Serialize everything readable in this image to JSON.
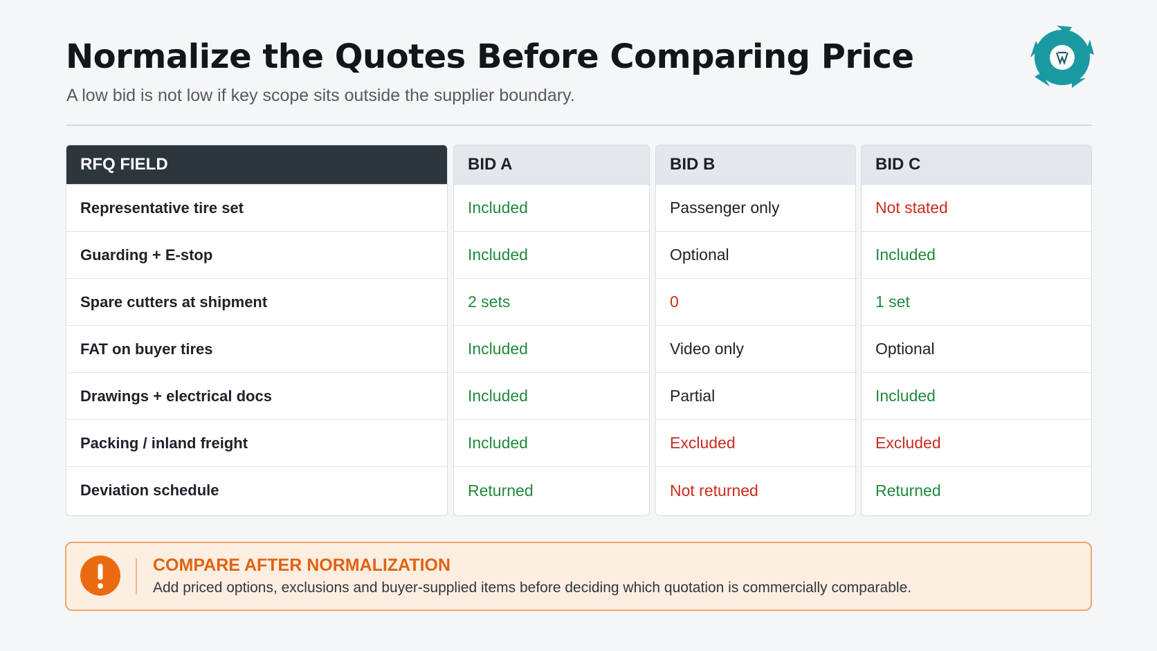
{
  "header": {
    "title": "Normalize the Quotes Before Comparing Price",
    "subtitle": "A low bid is not low if key scope sits outside the supplier boundary."
  },
  "table": {
    "columns": [
      "RFQ FIELD",
      "BID A",
      "BID B",
      "BID C"
    ],
    "rows": [
      [
        "Representative tire set",
        "Included",
        "Passenger only",
        "Not stated"
      ],
      [
        "Guarding + E-stop",
        "Included",
        "Optional",
        "Included"
      ],
      [
        "Spare cutters at shipment",
        "2 sets",
        "0",
        "1 set"
      ],
      [
        "FAT on buyer tires",
        "Included",
        "Video only",
        "Optional"
      ],
      [
        "Drawings + electrical docs",
        "Included",
        "Partial",
        "Included"
      ],
      [
        "Packing / inland freight",
        "Included",
        "Excluded",
        "Excluded"
      ],
      [
        "Deviation schedule",
        "Returned",
        "Not returned",
        "Returned"
      ]
    ]
  },
  "callout": {
    "title": "COMPARE AFTER NORMALIZATION",
    "text": "Add priced options, exclusions and buyer-supplied items before deciding which quotation is commercially comparable."
  }
}
